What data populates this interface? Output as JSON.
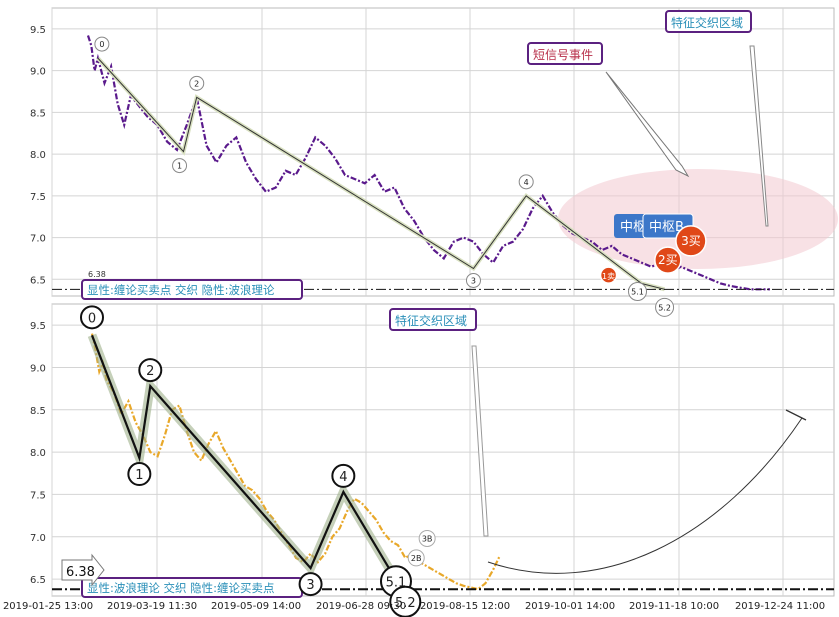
{
  "chart_data": [
    {
      "type": "line",
      "panel": "top",
      "ylim": [
        6.3,
        9.75
      ],
      "yticks": [
        "9.5",
        "9.0",
        "8.5",
        "8.0",
        "7.5",
        "7.0",
        "6.5"
      ],
      "grid": true,
      "baseline": {
        "value": 6.38,
        "label": "6.38"
      },
      "series": [
        {
          "color": "#5a1a8c",
          "style": "dash-dot",
          "x": [
            0,
            1,
            2,
            3,
            5,
            7,
            9,
            11,
            13,
            15,
            18,
            21,
            24,
            27,
            30,
            33,
            36,
            39,
            42,
            45,
            48,
            51,
            54,
            57,
            60,
            63,
            66,
            69,
            72,
            75,
            78,
            81,
            84,
            87,
            90,
            93,
            96,
            99,
            102,
            105,
            108,
            111,
            114,
            117,
            120,
            123,
            126,
            129,
            132,
            135,
            138,
            141,
            144,
            147,
            150,
            153,
            156,
            159,
            162,
            165,
            168,
            171,
            174,
            177,
            180,
            183,
            186,
            189,
            192,
            195,
            198,
            201,
            204,
            207
          ],
          "y": [
            9.42,
            9.3,
            9.0,
            9.15,
            8.85,
            9.05,
            8.6,
            8.35,
            8.7,
            8.6,
            8.45,
            8.35,
            8.15,
            8.05,
            8.35,
            8.68,
            8.1,
            7.9,
            8.1,
            8.2,
            7.9,
            7.7,
            7.55,
            7.6,
            7.8,
            7.75,
            7.95,
            8.2,
            8.1,
            7.95,
            7.75,
            7.7,
            7.65,
            7.75,
            7.55,
            7.6,
            7.35,
            7.2,
            7.0,
            6.85,
            6.75,
            6.95,
            7.0,
            6.95,
            6.8,
            6.7,
            6.9,
            6.95,
            7.1,
            7.35,
            7.5,
            7.3,
            7.15,
            7.05,
            7.0,
            6.95,
            6.85,
            6.9,
            6.8,
            6.75,
            6.7,
            6.65,
            6.7,
            6.6,
            6.65,
            6.6,
            6.55,
            6.5,
            6.45,
            6.42,
            6.4,
            6.38,
            6.38,
            6.38
          ]
        }
      ],
      "wave_points": [
        {
          "label": "0",
          "x": 3,
          "y": 9.15
        },
        {
          "label": "1",
          "x": 29,
          "y": 8.03
        },
        {
          "label": "2",
          "x": 33,
          "y": 8.68
        },
        {
          "label": "3",
          "x": 117,
          "y": 6.63
        },
        {
          "label": "4",
          "x": 133,
          "y": 7.5
        },
        {
          "label": "5.1",
          "x": 168,
          "y": 6.45
        },
        {
          "label": "5.2",
          "x": 175,
          "y": 6.38
        }
      ],
      "signals": [
        {
          "label": "1卖",
          "x": 158,
          "y": 6.55
        },
        {
          "label": "2买",
          "x": 176,
          "y": 6.73
        },
        {
          "label": "3买",
          "x": 183,
          "y": 6.96
        }
      ],
      "annotations": {
        "feature_zone": "特征交织区域",
        "short_signal": "短信号事件",
        "center_a": "中枢",
        "center_b": "中枢B",
        "legend": "显性:缠论买卖点 交织 隐性:波浪理论"
      }
    },
    {
      "type": "line",
      "panel": "bottom",
      "ylim": [
        6.3,
        9.75
      ],
      "yticks": [
        "9.5",
        "9.0",
        "8.5",
        "8.0",
        "7.5",
        "7.0",
        "6.5"
      ],
      "grid": true,
      "baseline": {
        "value": 6.38,
        "label": "6.38"
      },
      "xticks": [
        "2019-01-25 13:00",
        "2019-03-19 11:30",
        "2019-05-09 14:00",
        "2019-06-28 09:30",
        "2019-08-15 12:00",
        "2019-10-01 14:00",
        "2019-11-18 10:00",
        "2019-12-24 11:00"
      ],
      "series": [
        {
          "color": "#e8a82a",
          "style": "dash-dot",
          "x": [
            0,
            1,
            2,
            3,
            4,
            6,
            8,
            10,
            12,
            14,
            16,
            18,
            20,
            22,
            24,
            26,
            28,
            30,
            32,
            34,
            36,
            38,
            40,
            42,
            44,
            46,
            48,
            50,
            52,
            54,
            56,
            58,
            60,
            62,
            64,
            66,
            68,
            70,
            72,
            74,
            76,
            78,
            80,
            82,
            84,
            86,
            88,
            90,
            92,
            94,
            96,
            98,
            100,
            102,
            104,
            106,
            108,
            110,
            112
          ],
          "y": [
            9.4,
            9.2,
            8.95,
            9.05,
            8.85,
            8.7,
            8.45,
            8.6,
            8.35,
            8.2,
            8.0,
            7.95,
            8.2,
            8.5,
            8.55,
            8.25,
            8.0,
            7.9,
            8.1,
            8.25,
            8.05,
            7.9,
            7.75,
            7.6,
            7.55,
            7.45,
            7.3,
            7.2,
            7.05,
            6.9,
            6.75,
            6.7,
            6.8,
            6.7,
            6.8,
            7.0,
            7.1,
            7.3,
            7.45,
            7.4,
            7.3,
            7.2,
            7.05,
            6.95,
            6.9,
            6.75,
            6.8,
            6.7,
            6.65,
            6.6,
            6.55,
            6.5,
            6.45,
            6.42,
            6.4,
            6.38,
            6.45,
            6.6,
            6.78
          ]
        }
      ],
      "wave_points": [
        {
          "label": "0",
          "x": 0,
          "y": 9.38
        },
        {
          "label": "1",
          "x": 13,
          "y": 7.93
        },
        {
          "label": "2",
          "x": 16,
          "y": 8.78
        },
        {
          "label": "3",
          "x": 60,
          "y": 6.63
        },
        {
          "label": "4",
          "x": 69,
          "y": 7.53
        },
        {
          "label": "5.1",
          "x": 84,
          "y": 6.45
        },
        {
          "label": "5.2",
          "x": 86,
          "y": 6.35
        }
      ],
      "signals": [
        {
          "label": "2B",
          "x": 89,
          "y": 6.75
        },
        {
          "label": "3B",
          "x": 92,
          "y": 6.98
        }
      ],
      "annotations": {
        "feature_zone": "特征交织区域",
        "legend": "显性:波浪理论 交织 隐性:缠论买卖点"
      }
    }
  ]
}
